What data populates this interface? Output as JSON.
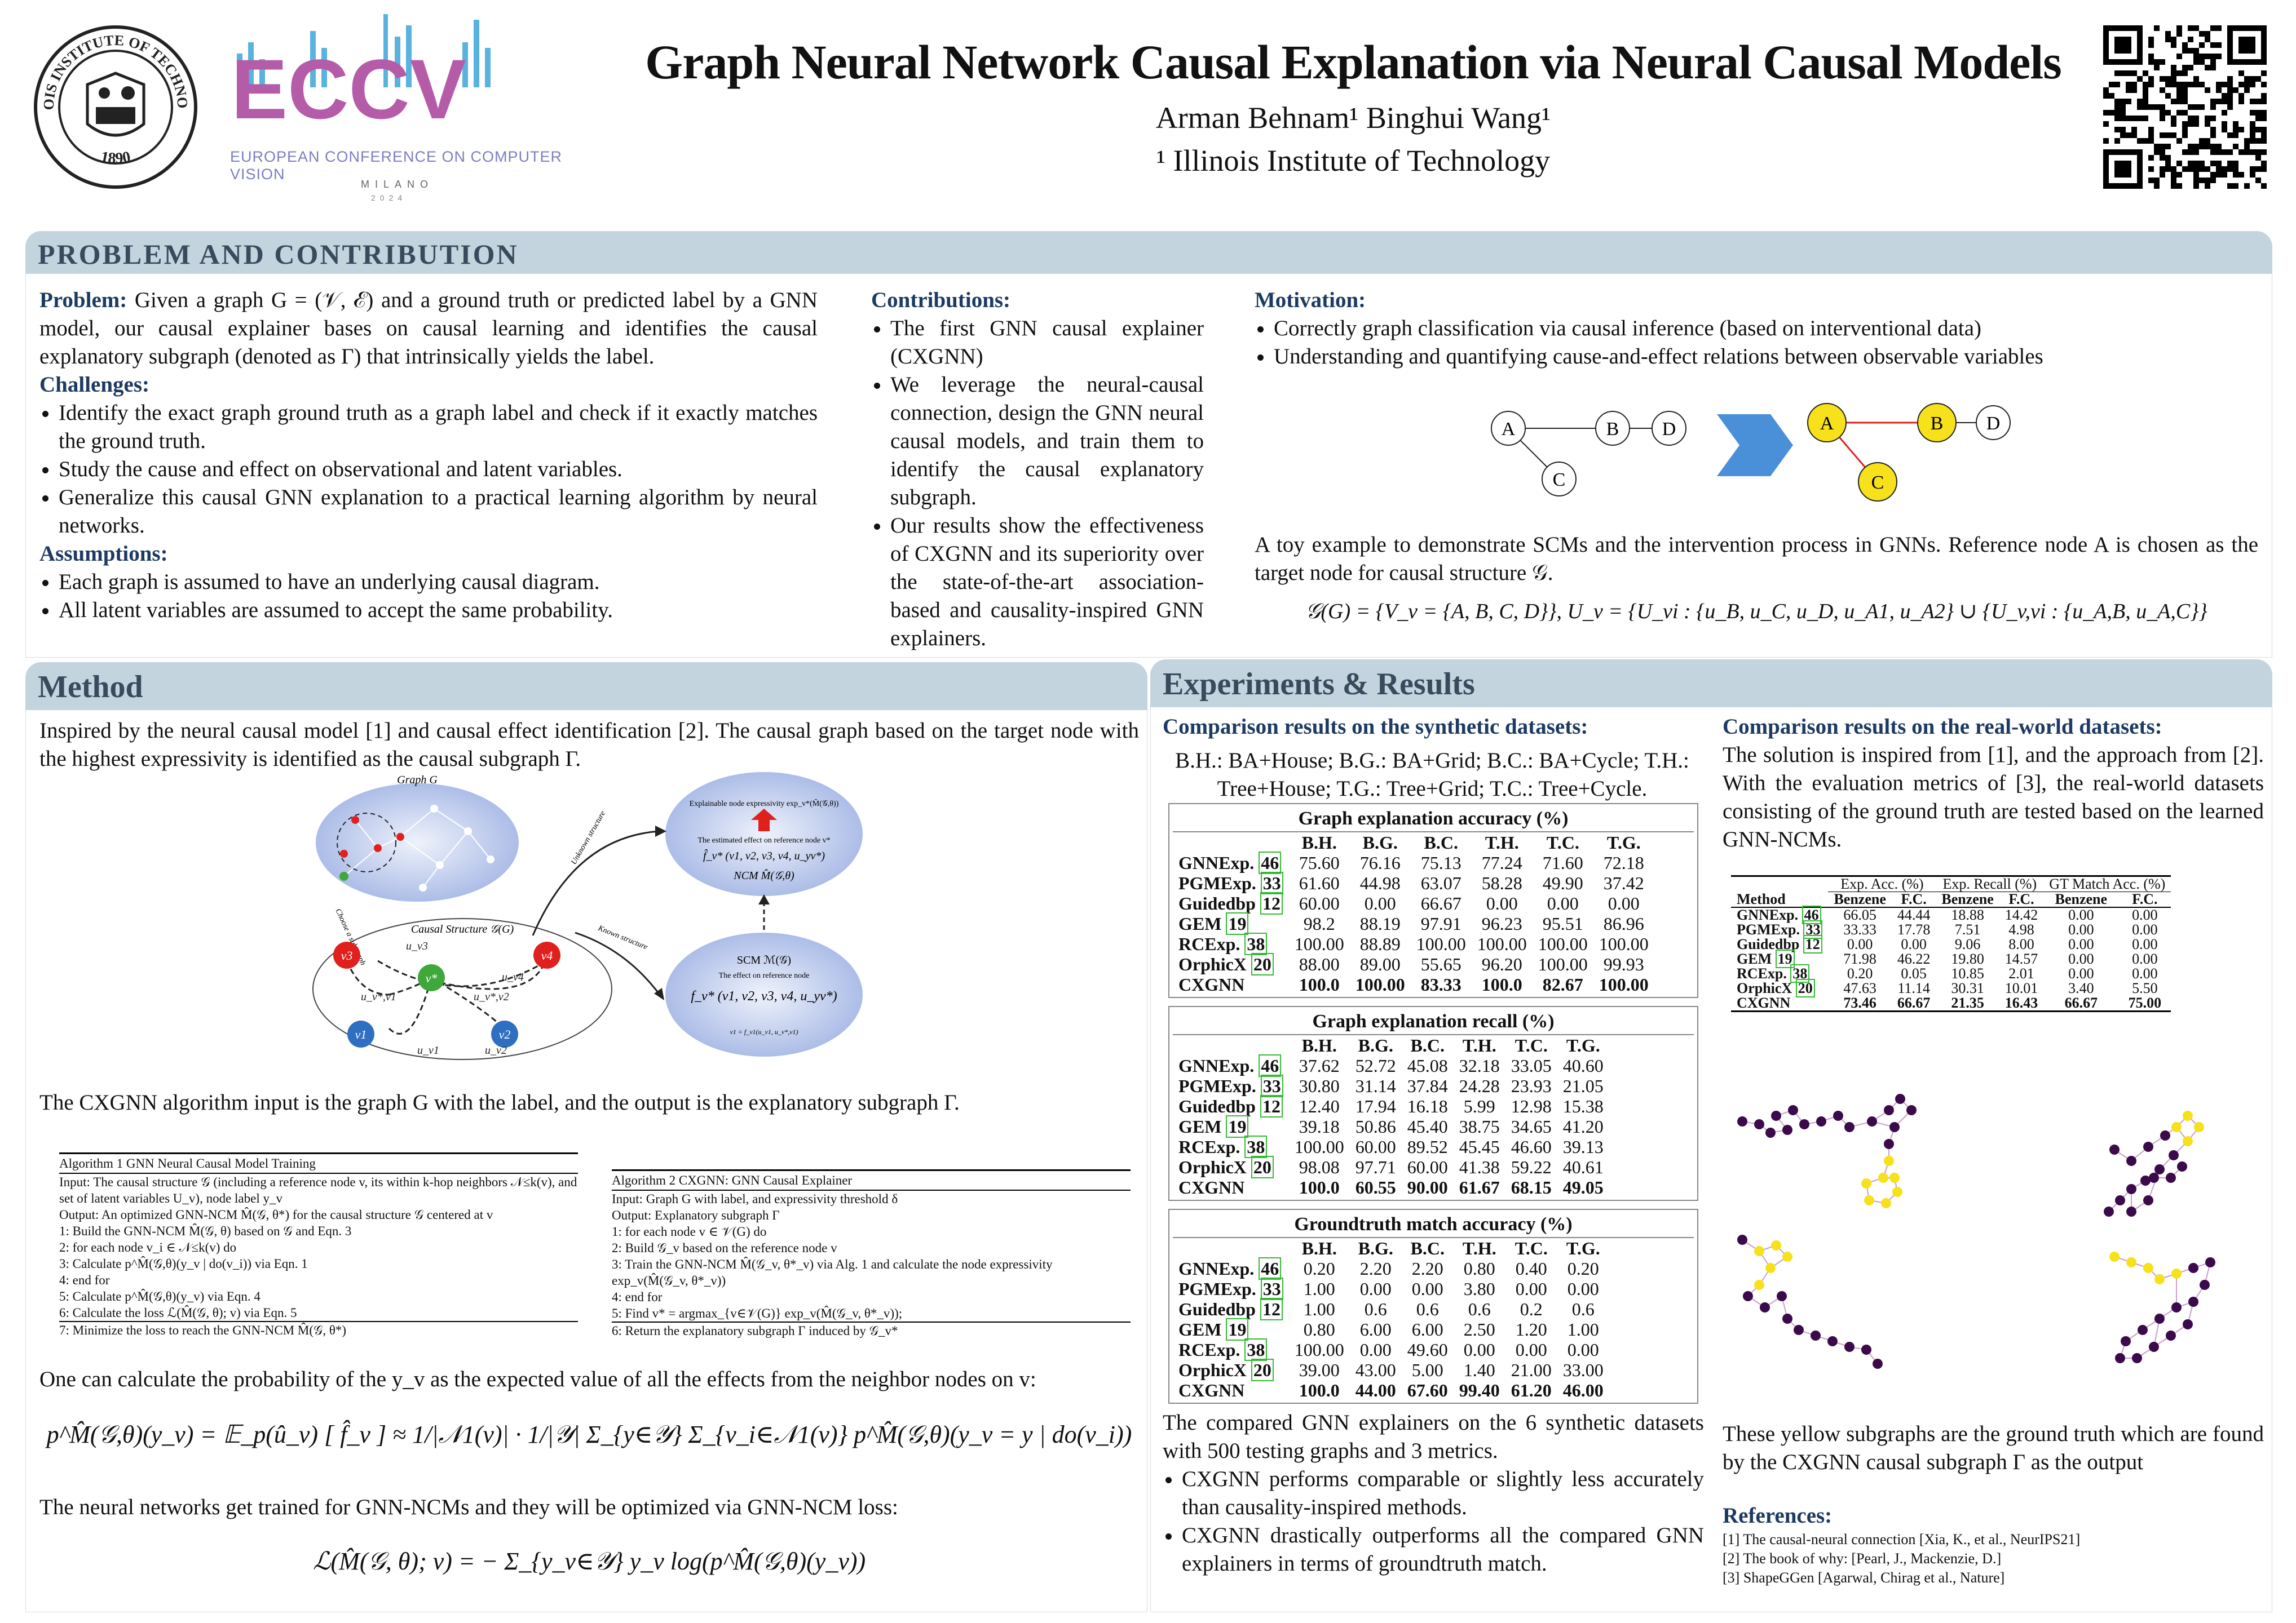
{
  "header": {
    "title": "Graph Neural Network Causal Explanation via Neural Causal Models",
    "authors": "Arman Behnam¹    Binghui Wang¹",
    "affiliation": "¹ Illinois Institute of Technology",
    "iit_logo": {
      "top_text": "ILLINOIS INSTITUTE OF TECHNOLOGY",
      "year": "1890"
    },
    "eccv_logo": {
      "mark": "ECCV",
      "name": "EUROPEAN CONFERENCE ON COMPUTER VISION",
      "city": "MILANO",
      "year": "2024"
    }
  },
  "colors": {
    "header_bg": "#c3d4df",
    "header_text": "#384a5c",
    "subhead": "#1d3a63",
    "yellow": "#f7e11a",
    "red": "#e0201c",
    "blue": "#2e6fc2",
    "green": "#3ea83a"
  },
  "problem": {
    "heading": "PROBLEM AND CONTRIBUTION",
    "problem_label": "Problem:",
    "problem_text": "Given a graph G = (𝒱, ℰ) and a ground truth or predicted label by a GNN model, our causal explainer bases on causal learning and identifies the causal explanatory subgraph (denoted as Γ) that intrinsically yields the label.",
    "challenges_label": "Challenges:",
    "challenges": [
      "Identify the exact graph ground truth as a graph label and check if it exactly matches the ground truth.",
      "Study the cause and effect on observational and latent variables.",
      "Generalize this causal GNN explanation to a practical learning algorithm by neural networks."
    ],
    "assumptions_label": "Assumptions:",
    "assumptions": [
      "Each graph is assumed to have an underlying causal diagram.",
      "All latent variables are assumed to accept the same probability."
    ],
    "contributions_label": "Contributions:",
    "contributions": [
      "The first GNN causal explainer (CXGNN)",
      "We leverage the neural-causal connection, design the GNN neural causal models, and train them to identify the causal explanatory subgraph.",
      "Our results show the effectiveness of CXGNN and its superiority over the state-of-the-art association-based and causality-inspired GNN explainers."
    ],
    "motivation_label": "Motivation:",
    "motivation": [
      "Correctly graph classification via causal inference (based on interventional data)",
      "Understanding and quantifying cause-and-effect relations between observable variables"
    ],
    "toy_nodes": [
      "A",
      "B",
      "C",
      "D"
    ],
    "toy_caption": "A toy example to demonstrate SCMs and the intervention process in GNNs. Reference node A is chosen as the target node for causal structure 𝒢.",
    "toy_equation": "𝒢(G) = {V_v = {A, B, C, D}},   U_v = {U_vi : {u_B, u_C, u_D, u_A1, u_A2} ∪ {U_v,vi : {u_A,B, u_A,C}}"
  },
  "method": {
    "heading": "Method",
    "intro": "Inspired by the neural causal model [1] and causal effect identification [2]. The causal graph based on the target node with the highest expressivity is identified as the causal subgraph Γ.",
    "figure_labels": {
      "graph": "Graph G",
      "causal_structure": "Causal Structure 𝒢(G)",
      "choose": "Choose a subgraph",
      "unknown": "Unknown structure",
      "known": "Known structure",
      "explainable": "Explainable node expressivity exp_v*(M̂(𝒢,θ))",
      "estimated": "The estimated effect on reference node v*",
      "f_hat": "f̂_v* (v1, v2, v3, v4, u_yv*)",
      "ncm": "NCM M̂(𝒢,θ)",
      "scm": "SCM  ℳ(𝒢)",
      "effect": "The effect on reference node",
      "f_v": "f_v* (v1, v2, v3, v4, u_yv*)",
      "v1_eq": "v1 = f_v1(u_v1, u_v*,v1)",
      "nodes": [
        "v3",
        "v4",
        "v*",
        "v1",
        "v2"
      ],
      "edges": [
        "u_v3",
        "u_v4",
        "u_v*,v1",
        "u_v*,v2",
        "u_v1",
        "u_v2"
      ]
    },
    "io_text": "The CXGNN algorithm input is the graph G with the label, and the output is the explanatory subgraph Γ.",
    "alg1": {
      "title": "Algorithm 1 GNN Neural Causal Model Training",
      "input": "Input: The causal structure 𝒢 (including a reference node v, its within k-hop neighbors 𝒩≤k(v), and set of latent variables U_v), node label y_v",
      "output": "Output: An optimized GNN-NCM M̂(𝒢, θ*) for the causal structure 𝒢 centered at v",
      "lines": [
        "1: Build the GNN-NCM M̂(𝒢, θ) based on 𝒢 and Eqn. 3",
        "2: for each node v_i ∈ 𝒩≤k(v) do",
        "3:      Calculate p^M̂(𝒢,θ)(y_v | do(v_i)) via Eqn. 1",
        "4: end for",
        "5: Calculate p^M̂(𝒢,θ)(y_v) via Eqn. 4",
        "6: Calculate the loss ℒ(M̂(𝒢, θ); v) via Eqn. 5",
        "7: Minimize the loss to reach the GNN-NCM M̂(𝒢, θ*)"
      ]
    },
    "alg2": {
      "title": "Algorithm 2 CXGNN: GNN Causal Explainer",
      "input": "Input: Graph G with label, and expressivity threshold δ",
      "output": "Output: Explanatory subgraph Γ",
      "lines": [
        "1: for each node v ∈ 𝒱(G) do",
        "2:      Build 𝒢_v based on the reference node v",
        "3:      Train the GNN-NCM M̂(𝒢_v, θ*_v) via Alg. 1 and calculate the node expressivity exp_v(M̂(𝒢_v, θ*_v))",
        "4: end for",
        "5: Find v* = argmax_{v∈𝒱(G)} exp_v(M̂(𝒢_v, θ*_v));",
        "6: Return the explanatory subgraph Γ induced by 𝒢_v*"
      ]
    },
    "prob_text": "One can calculate the probability of the y_v as the expected value of all the effects from the neighbor nodes on v:",
    "eq1": "p^M̂(𝒢,θ)(y_v) = 𝔼_p(û_v) [ f̂_v ] ≈ 1/|𝒩1(v)| · 1/|𝒴| Σ_{y∈𝒴} Σ_{v_i∈𝒩1(v)} p^M̂(𝒢,θ)(y_v = y | do(v_i))",
    "loss_text": "The neural networks get trained for GNN-NCMs and they will be optimized via GNN-NCM loss:",
    "eq2": "ℒ(M̂(𝒢, θ); v) = − Σ_{y_v∈𝒴} y_v log(p^M̂(𝒢,θ)(y_v))"
  },
  "experiments": {
    "heading": "Experiments & Results",
    "synthetic_title": "Comparison results on the synthetic datasets:",
    "synthetic_legend": "B.H.: BA+House; B.G.: BA+Grid; B.C.: BA+Cycle; T.H.: Tree+House; T.G.: Tree+Grid; T.C.: Tree+Cycle.",
    "columns": [
      "B.H.",
      "B.G.",
      "B.C.",
      "T.H.",
      "T.C.",
      "T.G."
    ],
    "tables": [
      {
        "title": "Graph explanation accuracy (%)",
        "rows": [
          {
            "m": "GNNExp.",
            "ref": "46",
            "v": [
              "75.60",
              "76.16",
              "75.13",
              "77.24",
              "71.60",
              "72.18"
            ]
          },
          {
            "m": "PGMExp.",
            "ref": "33",
            "v": [
              "61.60",
              "44.98",
              "63.07",
              "58.28",
              "49.90",
              "37.42"
            ]
          },
          {
            "m": "Guidedbp",
            "ref": "12",
            "v": [
              "60.00",
              "0.00",
              "66.67",
              "0.00",
              "0.00",
              "0.00"
            ]
          },
          {
            "m": "GEM",
            "ref": "19",
            "v": [
              "98.2",
              "88.19",
              "97.91",
              "96.23",
              "95.51",
              "86.96"
            ]
          },
          {
            "m": "RCExp.",
            "ref": "38",
            "v": [
              "100.00",
              "88.89",
              "100.00",
              "100.00",
              "100.00",
              "100.00"
            ]
          },
          {
            "m": "OrphicX",
            "ref": "20",
            "v": [
              "88.00",
              "89.00",
              "55.65",
              "96.20",
              "100.00",
              "99.93"
            ]
          },
          {
            "m": "CXGNN",
            "ref": "",
            "v": [
              "100.0",
              "100.00",
              "83.33",
              "100.0",
              "82.67",
              "100.00"
            ]
          }
        ]
      },
      {
        "title": "Graph explanation recall (%)",
        "rows": [
          {
            "m": "GNNExp.",
            "ref": "46",
            "v": [
              "37.62",
              "52.72",
              "45.08",
              "32.18",
              "33.05",
              "40.60"
            ]
          },
          {
            "m": "PGMExp.",
            "ref": "33",
            "v": [
              "30.80",
              "31.14",
              "37.84",
              "24.28",
              "23.93",
              "21.05"
            ]
          },
          {
            "m": "Guidedbp",
            "ref": "12",
            "v": [
              "12.40",
              "17.94",
              "16.18",
              "5.99",
              "12.98",
              "15.38"
            ]
          },
          {
            "m": "GEM",
            "ref": "19",
            "v": [
              "39.18",
              "50.86",
              "45.40",
              "38.75",
              "34.65",
              "41.20"
            ]
          },
          {
            "m": "RCExp.",
            "ref": "38",
            "v": [
              "100.00",
              "60.00",
              "89.52",
              "45.45",
              "46.60",
              "39.13"
            ]
          },
          {
            "m": "OrphicX",
            "ref": "20",
            "v": [
              "98.08",
              "97.71",
              "60.00",
              "41.38",
              "59.22",
              "40.61"
            ]
          },
          {
            "m": "CXGNN",
            "ref": "",
            "v": [
              "100.0",
              "60.55",
              "90.00",
              "61.67",
              "68.15",
              "49.05"
            ]
          }
        ]
      },
      {
        "title": "Groundtruth match accuracy (%)",
        "rows": [
          {
            "m": "GNNExp.",
            "ref": "46",
            "v": [
              "0.20",
              "2.20",
              "2.20",
              "0.80",
              "0.40",
              "0.20"
            ]
          },
          {
            "m": "PGMExp.",
            "ref": "33",
            "v": [
              "1.00",
              "0.00",
              "0.00",
              "3.80",
              "0.00",
              "0.00"
            ]
          },
          {
            "m": "Guidedbp",
            "ref": "12",
            "v": [
              "1.00",
              "0.6",
              "0.6",
              "0.6",
              "0.2",
              "0.6"
            ]
          },
          {
            "m": "GEM",
            "ref": "19",
            "v": [
              "0.80",
              "6.00",
              "6.00",
              "2.50",
              "1.20",
              "1.00"
            ]
          },
          {
            "m": "RCExp.",
            "ref": "38",
            "v": [
              "100.00",
              "0.00",
              "49.60",
              "0.00",
              "0.00",
              "0.00"
            ]
          },
          {
            "m": "OrphicX",
            "ref": "20",
            "v": [
              "39.00",
              "43.00",
              "5.00",
              "1.40",
              "21.00",
              "33.00"
            ]
          },
          {
            "m": "CXGNN",
            "ref": "",
            "v": [
              "100.0",
              "44.00",
              "67.60",
              "99.40",
              "61.20",
              "46.00"
            ]
          }
        ]
      }
    ],
    "summary_text": "The compared GNN explainers on the 6 synthetic datasets with 500 testing graphs and 3 metrics.",
    "summary_bullets": [
      "CXGNN performs comparable or slightly less accurately than causality-inspired methods.",
      "CXGNN drastically outperforms all the compared GNN explainers in terms of groundtruth match."
    ],
    "real_title": "Comparison results on the real-world datasets:",
    "real_text": "The solution is inspired from [1], and the approach from [2]. With the evaluation metrics of [3], the real-world datasets consisting of the ground truth are tested based on the learned GNN-NCMs.",
    "real_table": {
      "groups": [
        "Exp. Acc. (%)",
        "Exp. Recall (%)",
        "GT Match Acc. (%)"
      ],
      "sub": [
        "Method",
        "Benzene",
        "F.C.",
        "Benzene",
        "F.C.",
        "Benzene",
        "F.C."
      ],
      "rows": [
        {
          "m": "GNNExp.",
          "ref": "46",
          "v": [
            "66.05",
            "44.44",
            "18.88",
            "14.42",
            "0.00",
            "0.00"
          ]
        },
        {
          "m": "PGMExp.",
          "ref": "33",
          "v": [
            "33.33",
            "17.78",
            "7.51",
            "4.98",
            "0.00",
            "0.00"
          ]
        },
        {
          "m": "Guidedbp",
          "ref": "12",
          "v": [
            "0.00",
            "0.00",
            "9.06",
            "8.00",
            "0.00",
            "0.00"
          ]
        },
        {
          "m": "GEM",
          "ref": "19",
          "v": [
            "71.98",
            "46.22",
            "19.80",
            "14.57",
            "0.00",
            "0.00"
          ]
        },
        {
          "m": "RCExp.",
          "ref": "38",
          "v": [
            "0.20",
            "0.05",
            "10.85",
            "2.01",
            "0.00",
            "0.00"
          ]
        },
        {
          "m": "OrphicX",
          "ref": "20",
          "v": [
            "47.63",
            "11.14",
            "30.31",
            "10.01",
            "3.40",
            "5.50"
          ]
        },
        {
          "m": "CXGNN",
          "ref": "",
          "v": [
            "73.46",
            "66.67",
            "21.35",
            "16.43",
            "66.67",
            "75.00"
          ]
        }
      ]
    },
    "yellow_caption": "These yellow subgraphs are the ground truth which are found by the CXGNN causal subgraph Γ as the output",
    "references_label": "References:",
    "references": [
      "[1]   The causal-neural connection [Xia, K., et al., NeurIPS21]",
      "[2]   The book of why: [Pearl, J., Mackenzie, D.]",
      "[3]   ShapeGGen [Agarwal, Chirag et al., Nature]"
    ]
  }
}
